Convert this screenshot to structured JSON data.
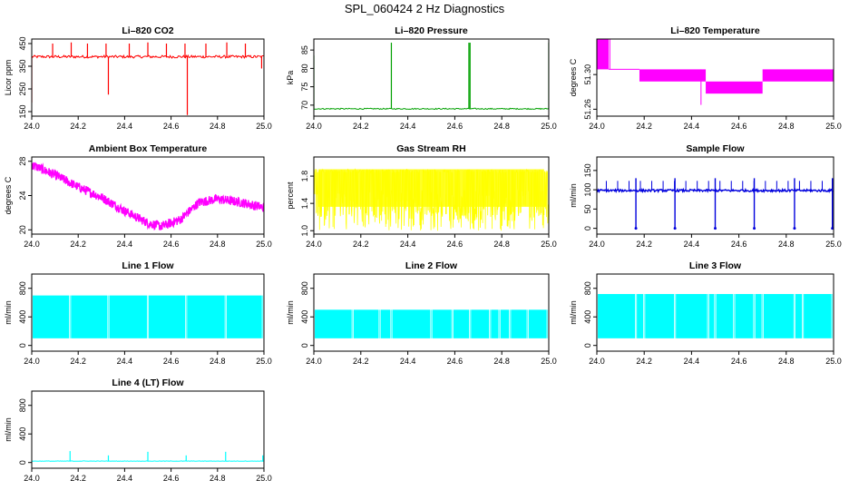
{
  "figure": {
    "title": "SPL_060424  2 Hz Diagnostics"
  },
  "chart_data": [
    {
      "type": "line",
      "title": "Li–820 CO2",
      "ylabel": "Licor ppm",
      "color": "#ff0000",
      "xlim": [
        24.0,
        25.0
      ],
      "ylim": [
        130,
        470
      ],
      "xticks": [
        24.0,
        24.2,
        24.4,
        24.6,
        24.8,
        25.0
      ],
      "xtick_labels": [
        "24.0",
        "24.2",
        "24.4",
        "24.6",
        "24.8",
        "25.0"
      ],
      "yticks": [
        150,
        250,
        350,
        450
      ],
      "ytick_labels": [
        "150",
        "250",
        "350",
        "450"
      ],
      "series": [
        {
          "baseline": 392,
          "noise": 12,
          "spikes": [
            {
              "x": 24.0,
              "y": 190
            },
            {
              "x": 24.09,
              "y": 450
            },
            {
              "x": 24.17,
              "y": 455
            },
            {
              "x": 24.24,
              "y": 450
            },
            {
              "x": 24.32,
              "y": 450
            },
            {
              "x": 24.33,
              "y": 225
            },
            {
              "x": 24.42,
              "y": 450
            },
            {
              "x": 24.5,
              "y": 455
            },
            {
              "x": 24.58,
              "y": 450
            },
            {
              "x": 24.66,
              "y": 450
            },
            {
              "x": 24.67,
              "y": 135
            },
            {
              "x": 24.75,
              "y": 450
            },
            {
              "x": 24.84,
              "y": 455
            },
            {
              "x": 24.92,
              "y": 450
            },
            {
              "x": 24.99,
              "y": 340
            }
          ]
        }
      ]
    },
    {
      "type": "line",
      "title": "Li–820 Pressure",
      "ylabel": "kPa",
      "color": "#00a000",
      "xlim": [
        24.0,
        25.0
      ],
      "ylim": [
        67,
        88
      ],
      "xticks": [
        24.0,
        24.2,
        24.4,
        24.6,
        24.8,
        25.0
      ],
      "xtick_labels": [
        "24.0",
        "24.2",
        "24.4",
        "24.6",
        "24.8",
        "25.0"
      ],
      "yticks": [
        70,
        75,
        80,
        85
      ],
      "ytick_labels": [
        "70",
        "75",
        "80",
        "85"
      ],
      "series": [
        {
          "baseline": 69.0,
          "noise": 0.3,
          "spikes": [
            {
              "x": 24.0,
              "y": 83.5
            },
            {
              "x": 24.33,
              "y": 87
            },
            {
              "x": 24.66,
              "y": 87
            },
            {
              "x": 24.665,
              "y": 87
            },
            {
              "x": 25.0,
              "y": 87
            }
          ]
        }
      ]
    },
    {
      "type": "line",
      "title": "Li–820 Temperature",
      "ylabel": "degrees C",
      "color": "#ff00ff",
      "xlim": [
        24.0,
        25.0
      ],
      "ylim": [
        51.252,
        51.341
      ],
      "xticks": [
        24.0,
        24.2,
        24.4,
        24.6,
        24.8,
        25.0
      ],
      "xtick_labels": [
        "24.0",
        "24.2",
        "24.4",
        "24.6",
        "24.8",
        "25.0"
      ],
      "yticks": [
        51.26,
        51.3
      ],
      "ytick_labels": [
        "51.26",
        "51.30"
      ],
      "series": [
        {
          "levels": [
            51.278,
            51.292,
            51.306,
            51.32
          ],
          "segments": [
            {
              "x0": 24.0,
              "x1": 24.05,
              "lo": 51.306,
              "hi": 51.341
            },
            {
              "x0": 24.05,
              "x1": 24.18,
              "lo": 51.306,
              "hi": 51.306
            },
            {
              "x0": 24.18,
              "x1": 24.46,
              "lo": 51.292,
              "hi": 51.306
            },
            {
              "x0": 24.46,
              "x1": 24.7,
              "lo": 51.278,
              "hi": 51.292
            },
            {
              "x0": 24.7,
              "x1": 25.0,
              "lo": 51.292,
              "hi": 51.306
            }
          ]
        }
      ]
    },
    {
      "type": "line",
      "title": "Ambient Box Temperature",
      "ylabel": "degrees C",
      "color": "#ff00ff",
      "xlim": [
        24.0,
        25.0
      ],
      "ylim": [
        19.5,
        28.5
      ],
      "xticks": [
        24.0,
        24.2,
        24.4,
        24.6,
        24.8,
        25.0
      ],
      "xtick_labels": [
        "24.0",
        "24.2",
        "24.4",
        "24.6",
        "24.8",
        "25.0"
      ],
      "yticks": [
        20,
        24,
        28
      ],
      "ytick_labels": [
        "20",
        "24",
        "28"
      ],
      "series": [
        {
          "x": [
            24.0,
            24.1,
            24.2,
            24.3,
            24.4,
            24.5,
            24.56,
            24.64,
            24.72,
            24.8,
            24.9,
            25.0
          ],
          "y": [
            27.6,
            26.4,
            25.0,
            23.8,
            22.2,
            20.8,
            20.4,
            21.2,
            23.2,
            23.6,
            23.2,
            22.6
          ],
          "noise": 0.55
        }
      ]
    },
    {
      "type": "line",
      "title": "Gas Stream RH",
      "ylabel": "percent",
      "color": "#ffff00",
      "xlim": [
        24.0,
        25.0
      ],
      "ylim": [
        0.95,
        2.08
      ],
      "xticks": [
        24.0,
        24.2,
        24.4,
        24.6,
        24.8,
        25.0
      ],
      "xtick_labels": [
        "24.0",
        "24.2",
        "24.4",
        "24.6",
        "24.8",
        "25.0"
      ],
      "yticks": [
        1.0,
        1.4,
        1.8
      ],
      "ytick_labels": [
        "1.0",
        "1.4",
        "1.8"
      ],
      "series": [
        {
          "low": 1.0,
          "high": 1.95,
          "band_low": 1.2,
          "band_high": 1.9
        }
      ]
    },
    {
      "type": "line",
      "title": "Sample Flow",
      "ylabel": "ml/min",
      "color": "#0000dd",
      "xlim": [
        24.0,
        25.0
      ],
      "ylim": [
        -15,
        185
      ],
      "xticks": [
        24.0,
        24.2,
        24.4,
        24.6,
        24.8,
        25.0
      ],
      "xtick_labels": [
        "24.0",
        "24.2",
        "24.4",
        "24.6",
        "24.8",
        "25.0"
      ],
      "yticks": [
        0,
        50,
        100,
        150
      ],
      "ytick_labels": [
        "0",
        "50",
        "100",
        "150"
      ],
      "series": [
        {
          "baseline": 98,
          "noise": 6,
          "dips": [
            24.165,
            24.33,
            24.5,
            24.665,
            24.835,
            24.995
          ],
          "dip_value": 0,
          "peak_value": 130
        }
      ]
    },
    {
      "type": "line",
      "title": "Line 1 Flow",
      "ylabel": "ml/min",
      "color": "#00ffff",
      "xlim": [
        24.0,
        25.0
      ],
      "ylim": [
        -80,
        1000
      ],
      "xticks": [
        24.0,
        24.2,
        24.4,
        24.6,
        24.8,
        25.0
      ],
      "xtick_labels": [
        "24.0",
        "24.2",
        "24.4",
        "24.6",
        "24.8",
        "25.0"
      ],
      "yticks": [
        0,
        400,
        800
      ],
      "ytick_labels": [
        "0",
        "400",
        "800"
      ],
      "series": [
        {
          "low": 100,
          "high": 700,
          "gaps": [
            24.165,
            24.33,
            24.5,
            24.665,
            24.835,
            24.995
          ]
        }
      ]
    },
    {
      "type": "line",
      "title": "Line 2 Flow",
      "ylabel": "ml/min",
      "color": "#00ffff",
      "xlim": [
        24.0,
        25.0
      ],
      "ylim": [
        -80,
        1000
      ],
      "xticks": [
        24.0,
        24.2,
        24.4,
        24.6,
        24.8,
        25.0
      ],
      "xtick_labels": [
        "24.0",
        "24.2",
        "24.4",
        "24.6",
        "24.8",
        "25.0"
      ],
      "yticks": [
        0,
        400,
        800
      ],
      "ytick_labels": [
        "0",
        "400",
        "800"
      ],
      "series": [
        {
          "low": 100,
          "high": 500,
          "gaps": [
            24.165,
            24.28,
            24.33,
            24.5,
            24.59,
            24.665,
            24.75,
            24.79,
            24.835,
            24.91,
            24.995
          ]
        }
      ]
    },
    {
      "type": "line",
      "title": "Line 3 Flow",
      "ylabel": "ml/min",
      "color": "#00ffff",
      "xlim": [
        24.0,
        25.0
      ],
      "ylim": [
        -80,
        1000
      ],
      "xticks": [
        24.0,
        24.2,
        24.4,
        24.6,
        24.8,
        25.0
      ],
      "xtick_labels": [
        "24.0",
        "24.2",
        "24.4",
        "24.6",
        "24.8",
        "25.0"
      ],
      "yticks": [
        0,
        400,
        800
      ],
      "ytick_labels": [
        "0",
        "400",
        "800"
      ],
      "series": [
        {
          "low": 100,
          "high": 720,
          "gaps": [
            24.165,
            24.2,
            24.33,
            24.47,
            24.5,
            24.58,
            24.665,
            24.7,
            24.835,
            24.87,
            24.995
          ]
        }
      ]
    },
    {
      "type": "line",
      "title": "Line 4 (LT) Flow",
      "ylabel": "ml/min",
      "color": "#00ffff",
      "xlim": [
        24.0,
        25.0
      ],
      "ylim": [
        -80,
        1000
      ],
      "xticks": [
        24.0,
        24.2,
        24.4,
        24.6,
        24.8,
        25.0
      ],
      "xtick_labels": [
        "24.0",
        "24.2",
        "24.4",
        "24.6",
        "24.8",
        "25.0"
      ],
      "yticks": [
        0,
        400,
        800
      ],
      "ytick_labels": [
        "0",
        "400",
        "800"
      ],
      "series": [
        {
          "baseline": 20,
          "noise": 6,
          "spikes": [
            {
              "x": 24.165,
              "y": 160
            },
            {
              "x": 24.33,
              "y": 100
            },
            {
              "x": 24.5,
              "y": 150
            },
            {
              "x": 24.665,
              "y": 100
            },
            {
              "x": 24.835,
              "y": 150
            },
            {
              "x": 24.995,
              "y": 100
            }
          ]
        }
      ]
    }
  ]
}
